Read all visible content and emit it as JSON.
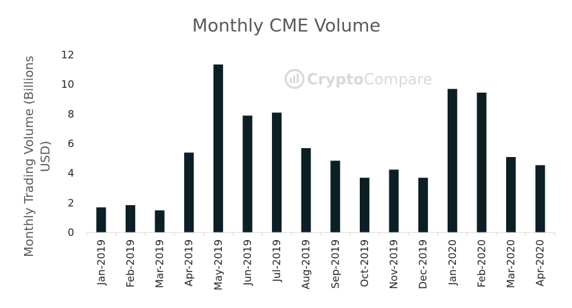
{
  "chart_data": {
    "type": "bar",
    "title": "Monthly CME Volume",
    "ylabel_lines": [
      "Monthly Trading Volume (Billions",
      "USD)"
    ],
    "xlabel": "",
    "categories": [
      "Jan-2019",
      "Feb-2019",
      "Mar-2019",
      "Apr-2019",
      "May-2019",
      "Jun-2019",
      "Jul-2019",
      "Aug-2019",
      "Sep-2019",
      "Oct-2019",
      "Nov-2019",
      "Dec-2019",
      "Jan-2020",
      "Feb-2020",
      "Mar-2020",
      "Apr-2020"
    ],
    "values": [
      1.7,
      1.85,
      1.5,
      5.4,
      11.35,
      7.9,
      8.1,
      5.7,
      4.85,
      3.7,
      4.25,
      3.7,
      9.7,
      9.45,
      5.1,
      4.55
    ],
    "ylim": [
      0,
      12
    ],
    "yticks": [
      "0",
      "2",
      "4",
      "6",
      "8",
      "10",
      "12"
    ],
    "grid": false,
    "legend": "none",
    "bar_color": "#0b1f24",
    "axis_color": "#d9d9d9"
  },
  "watermark": {
    "text_part1": "Crypto",
    "text_part2": "Compare",
    "color": "#d9d9d9"
  }
}
